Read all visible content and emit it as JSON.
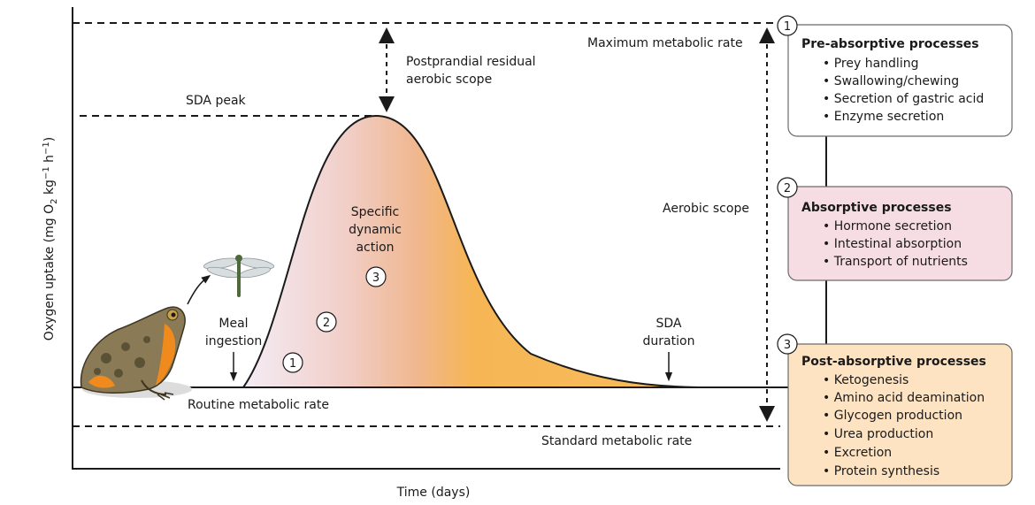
{
  "axes": {
    "y_label": "Oxygen uptake (mg O",
    "y_label_sub": "2",
    "y_label_tail": " kg",
    "y_label_sup1": "−1",
    "y_label_h": " h",
    "y_label_sup2": "−1",
    "y_label_close": ")",
    "x_label": "Time (days)"
  },
  "levels": {
    "max_rate": "Maximum metabolic rate",
    "sda_peak": "SDA peak",
    "routine_rate": "Routine metabolic rate",
    "standard_rate": "Standard metabolic rate"
  },
  "annotations": {
    "residual_scope_line1": "Postprandial residual",
    "residual_scope_line2": "aerobic scope",
    "aerobic_scope": "Aerobic scope",
    "meal_line1": "Meal",
    "meal_line2": "ingestion",
    "sda_line1": "Specific",
    "sda_line2": "dynamic",
    "sda_line3": "action",
    "duration_line1": "SDA",
    "duration_line2": "duration"
  },
  "steps": [
    "1",
    "2",
    "3"
  ],
  "colors": {
    "pre_box_fill": "#ffffff",
    "absorptive_box_fill": "#f6dde3",
    "post_box_fill": "#fde3c2",
    "curve_start": "#f3e6f2",
    "curve_mid": "#f0b897",
    "curve_end": "#f7b44a"
  },
  "process_boxes": [
    {
      "number": "1",
      "title": "Pre-absorptive processes",
      "items": [
        "Prey handling",
        "Swallowing/chewing",
        "Secretion of gastric acid",
        "Enzyme secretion"
      ]
    },
    {
      "number": "2",
      "title": "Absorptive processes",
      "items": [
        "Hormone secretion",
        "Intestinal absorption",
        "Transport of nutrients"
      ]
    },
    {
      "number": "3",
      "title": "Post-absorptive processes",
      "items": [
        "Ketogenesis",
        "Amino acid deamination",
        "Glycogen production",
        "Urea production",
        "Excretion",
        "Protein synthesis"
      ]
    }
  ],
  "icons": [
    "frog-icon",
    "dragonfly-icon"
  ]
}
